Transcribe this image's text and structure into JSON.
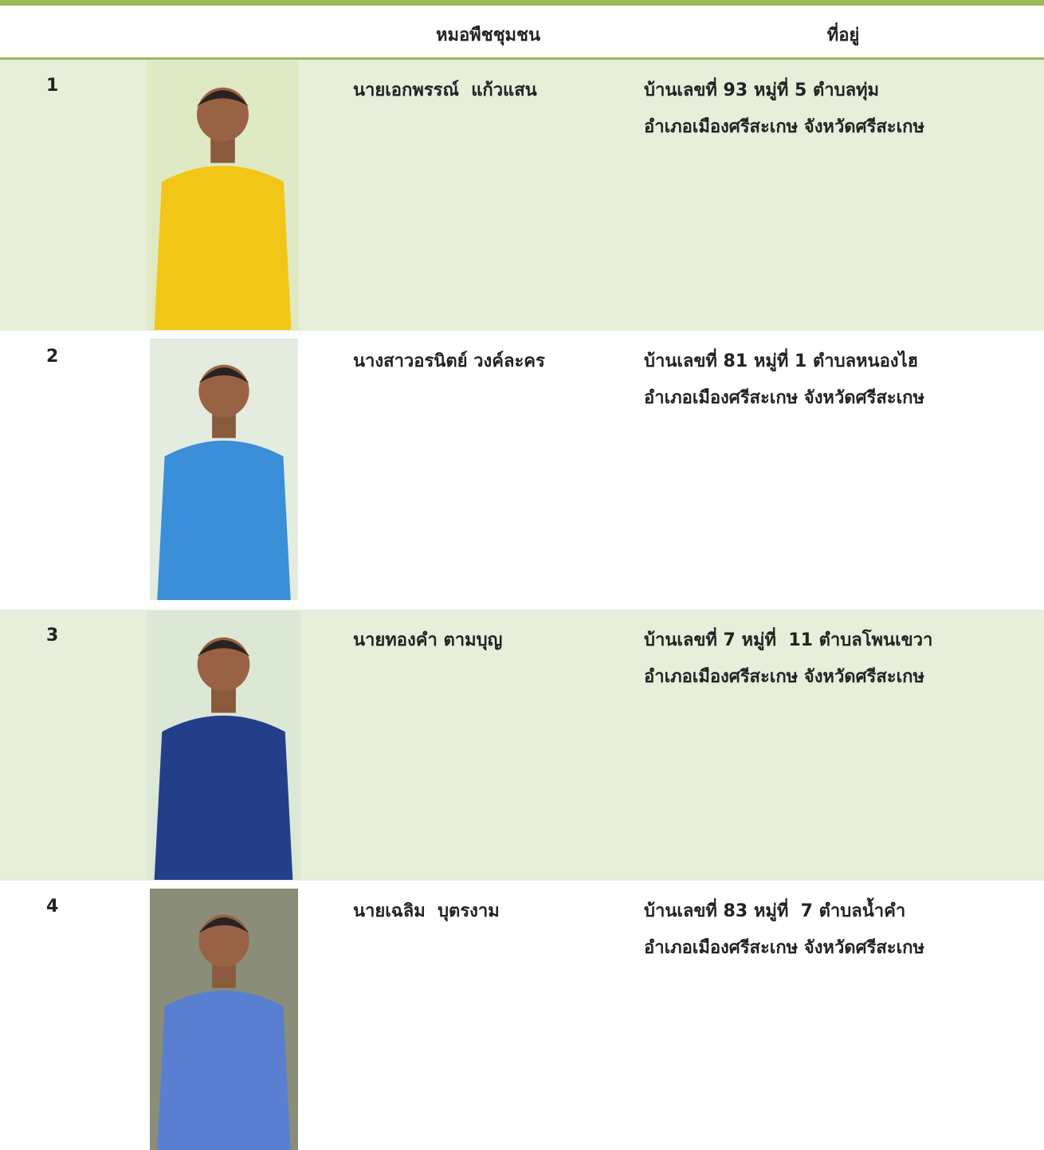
{
  "table": {
    "header": [
      "หมอพืชชุมชน",
      "ที่อยู่"
    ],
    "rows": [
      {
        "number": "1",
        "name": "นายเอกพรรณ์  แก้วแสน",
        "address": [
          "บ้านเลขที่ 93 หมู่ที่ 5 ตำบลทุ่ม",
          "อำเภอเมืองศรีสะเกษ จังหวัดศรีสะเกษ"
        ]
      },
      {
        "number": "2",
        "name": "นางสาวอรนิตย์ วงค์ละคร",
        "address": [
          "บ้านเลขที่ 81 หมู่ที่ 1 ตำบลหนองไฮ",
          "อำเภอเมืองศรีสะเกษ จังหวัดศรีสะเกษ"
        ]
      },
      {
        "number": "3",
        "name": "นายทองคำ ตามบุญ",
        "address": [
          "บ้านเลขที่ 7 หมู่ที่  11 ตำบลโพนเขวา",
          "อำเภอเมืองศรีสะเกษ จังหวัดศรีสะเกษ"
        ]
      },
      {
        "number": "4",
        "name": "นายเฉลิม  บุตรงาม",
        "address": [
          "บ้านเลขที่ 83 หมู่ที่  7 ตำบลน้ำคำ",
          "อำเภอเมืองศรีสะเกษ จังหวัดศรีสะเกษ"
        ]
      }
    ]
  }
}
